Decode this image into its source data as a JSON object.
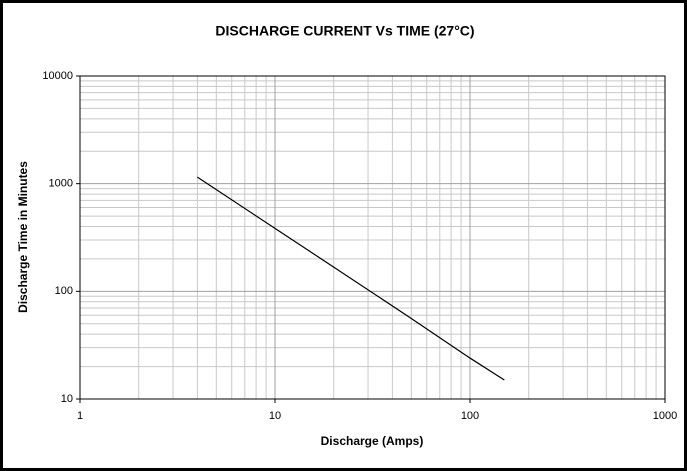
{
  "chart_data": {
    "type": "line",
    "title": "DISCHARGE CURRENT Vs TIME (27°C)",
    "x_label": "Discharge (Amps)",
    "y_label": "Discharge Time in Minutes",
    "x": [
      4,
      10,
      20,
      50,
      100,
      150
    ],
    "series": [
      {
        "name": "Discharge",
        "color": "#000000",
        "values": [
          1150,
          384,
          168,
          56,
          24,
          15
        ]
      }
    ],
    "xlim": [
      1,
      1000
    ],
    "xticks": [
      1,
      10,
      100,
      1000
    ],
    "ylim": [
      10,
      10000
    ],
    "yticks": [
      10,
      100,
      1000,
      10000
    ],
    "x_log": true,
    "y_log": true,
    "grid": true,
    "minor_grid": true
  }
}
